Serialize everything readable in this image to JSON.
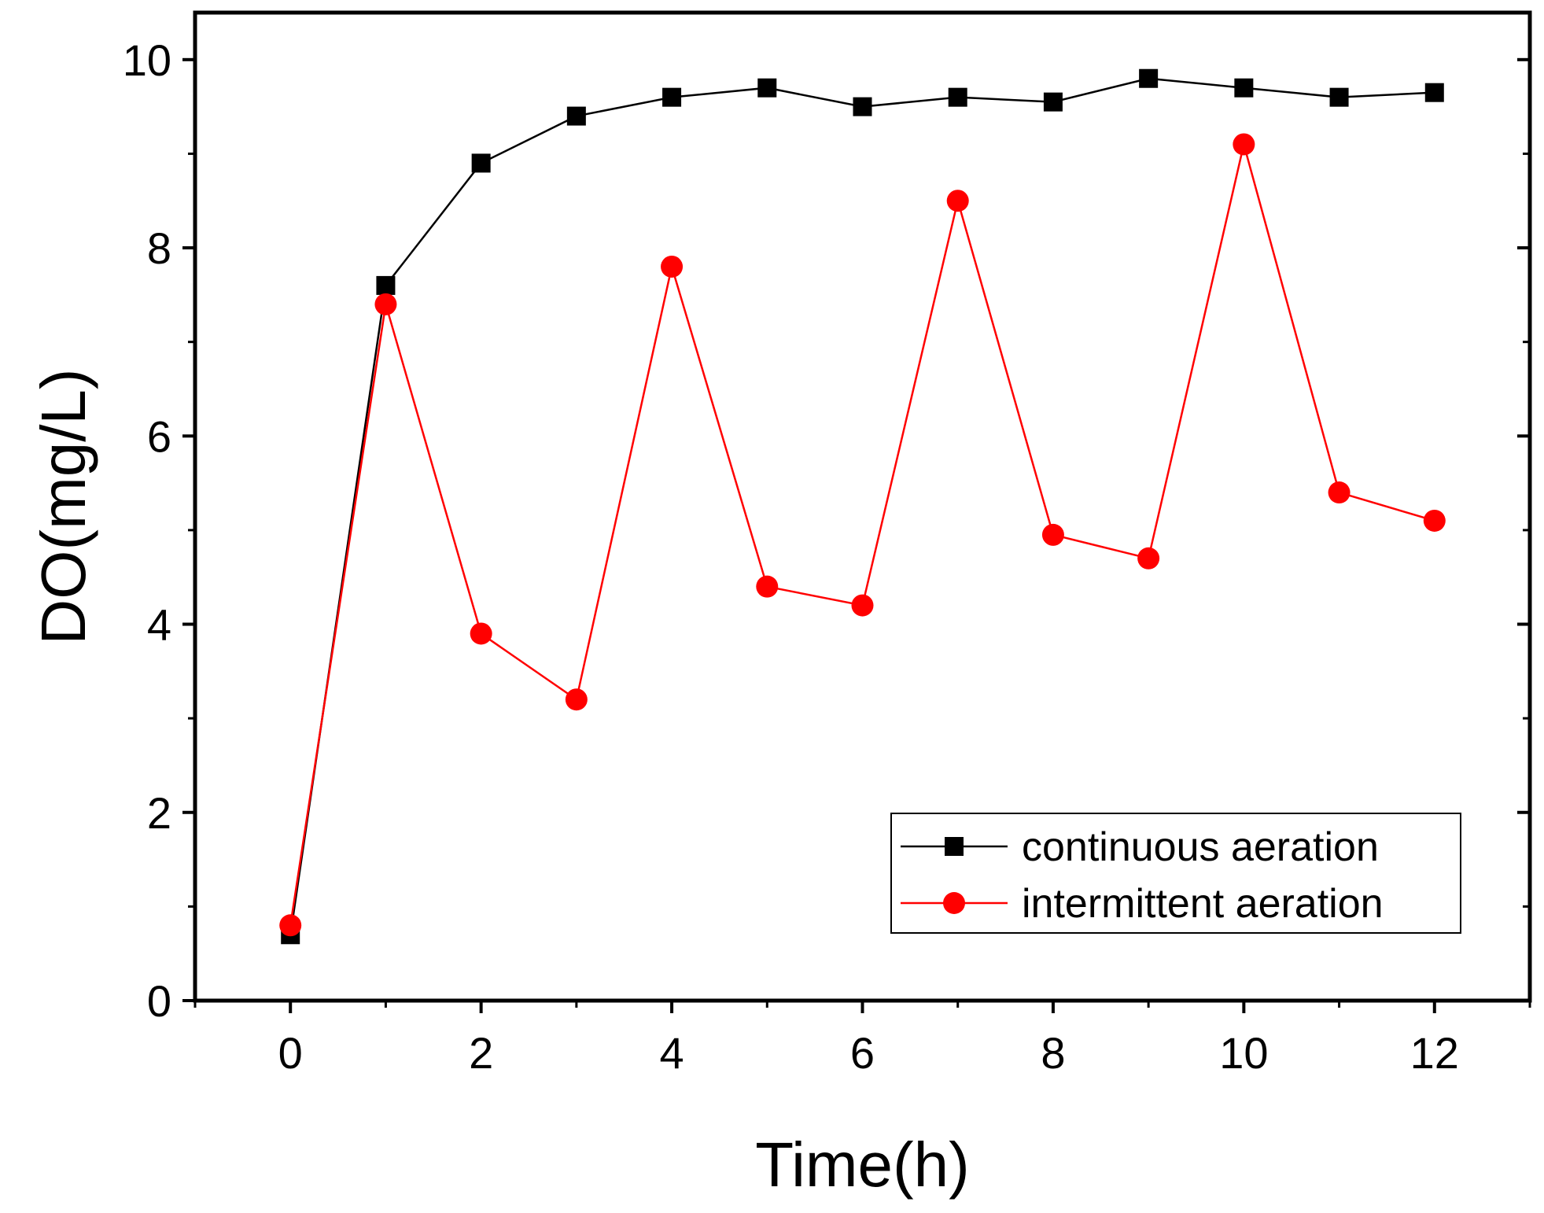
{
  "chart_data": {
    "type": "line",
    "title": "",
    "xlabel": "Time(h)",
    "ylabel": "DO(mg/L)",
    "xlim": [
      -1,
      13
    ],
    "ylim": [
      0,
      10.5
    ],
    "x_ticks": [
      "0",
      "2",
      "4",
      "6",
      "8",
      "10",
      "12"
    ],
    "y_ticks": [
      "0",
      "2",
      "4",
      "6",
      "8",
      "10"
    ],
    "x": [
      0,
      1,
      2,
      3,
      4,
      5,
      6,
      7,
      8,
      9,
      10,
      11,
      12
    ],
    "series": [
      {
        "name": "continuous aeration",
        "color": "#000000",
        "marker": "square",
        "values": [
          0.7,
          7.6,
          8.9,
          9.4,
          9.6,
          9.7,
          9.5,
          9.6,
          9.55,
          9.8,
          9.7,
          9.6,
          9.65
        ]
      },
      {
        "name": "intermittent aeration",
        "color": "#ff0000",
        "marker": "circle",
        "values": [
          0.8,
          7.4,
          3.9,
          3.2,
          7.8,
          4.4,
          4.2,
          8.5,
          4.95,
          4.7,
          9.1,
          5.4,
          5.1
        ]
      }
    ],
    "legend": {
      "position": "bottom-right"
    }
  }
}
